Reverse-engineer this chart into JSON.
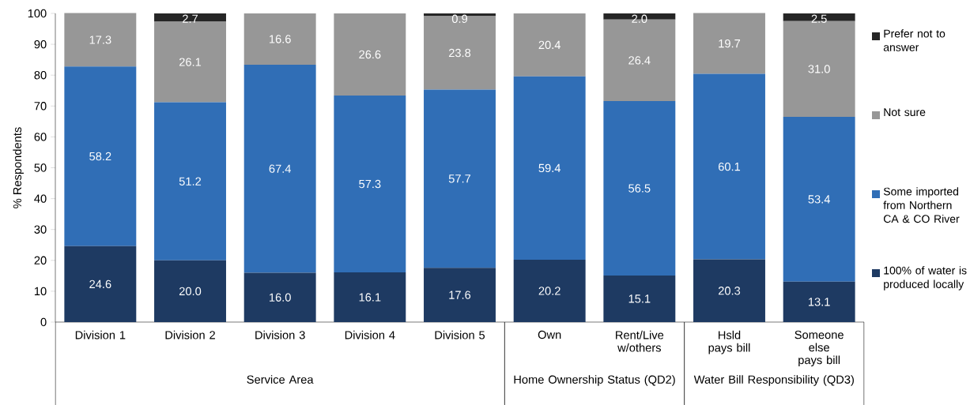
{
  "chart_data": {
    "type": "bar",
    "stacked": true,
    "ylabel": "% Respondents",
    "categories": [
      "Division 1",
      "Division 2",
      "Division 3",
      "Division 4",
      "Division 5",
      "Own",
      "Rent/Live w/others",
      "Hsld pays bill",
      "Someone else pays bill"
    ],
    "ylim": [
      0,
      100
    ],
    "yticks": [
      0,
      10,
      20,
      30,
      40,
      50,
      60,
      70,
      80,
      90,
      100
    ],
    "legend": "right",
    "annotations": [
      "Service Area",
      "Home Ownership Status (QD2)",
      "Water Bill Responsibility (QD3)"
    ],
    "series": [
      {
        "name": "100% of water is produced locally",
        "color": "#1e3a62",
        "values": [
          24.6,
          20.0,
          16.0,
          16.1,
          17.6,
          20.2,
          15.1,
          20.3,
          13.1
        ],
        "value_labels": [
          "24.6",
          "20.0",
          "16.0",
          "16.1",
          "17.6",
          "20.2",
          "15.1",
          "20.3",
          "13.1"
        ]
      },
      {
        "name": "Some imported from Northern CA & CO River",
        "color": "#306eb6",
        "values": [
          58.2,
          51.2,
          67.4,
          57.3,
          57.7,
          59.4,
          56.5,
          60.1,
          53.4
        ],
        "value_labels": [
          "58.2",
          "51.2",
          "67.4",
          "57.3",
          "57.7",
          "59.4",
          "56.5",
          "60.1",
          "53.4"
        ]
      },
      {
        "name": "Not sure",
        "color": "#979797",
        "values": [
          17.3,
          26.1,
          16.6,
          26.6,
          23.8,
          20.4,
          26.4,
          19.7,
          31.0
        ],
        "value_labels": [
          "17.3",
          "26.1",
          "16.6",
          "26.6",
          "23.8",
          "20.4",
          "26.4",
          "19.7",
          "31.0"
        ]
      },
      {
        "name": "Prefer not to answer",
        "color": "#262626",
        "values": [
          0,
          2.7,
          0,
          0,
          0.9,
          0,
          2.0,
          0,
          2.5
        ],
        "value_labels": [
          null,
          "2.7",
          null,
          null,
          "0.9",
          null,
          "2.0",
          null,
          "2.5"
        ]
      }
    ]
  }
}
